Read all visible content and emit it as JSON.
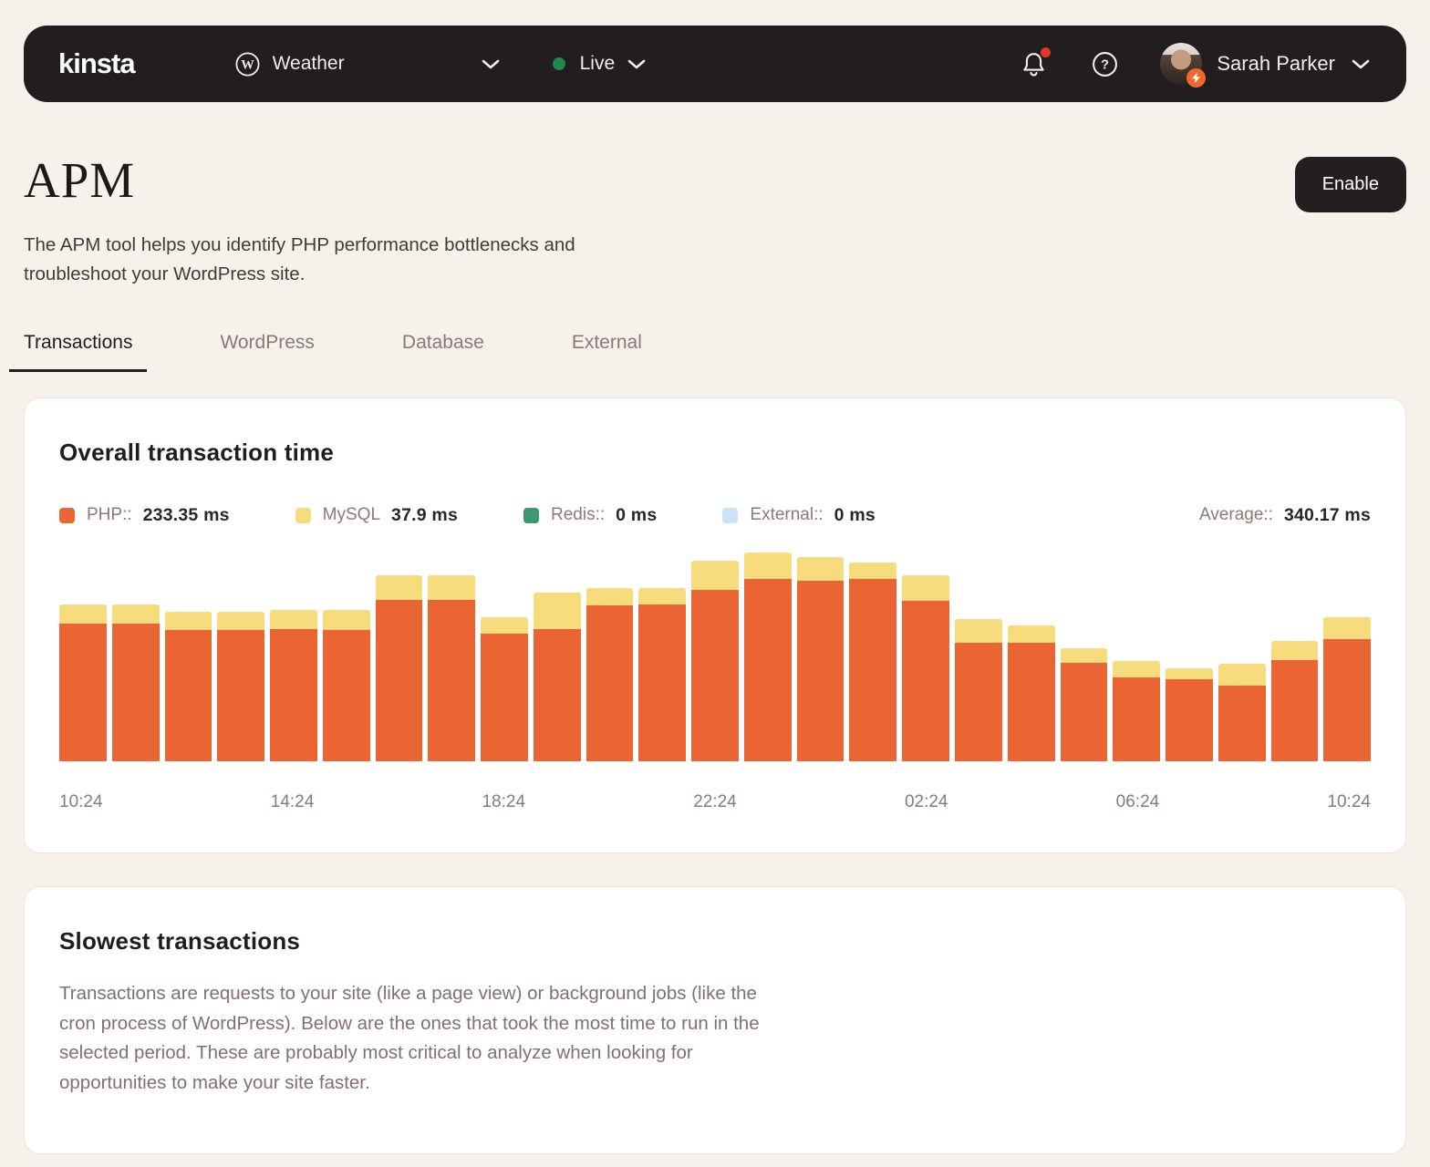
{
  "nav": {
    "logo": "kinsta",
    "site_selector": {
      "label": "Weather",
      "icon": "wordpress-icon"
    },
    "env_selector": {
      "label": "Live",
      "status_color": "#1F8A4D"
    },
    "user": {
      "name": "Sarah Parker"
    }
  },
  "page": {
    "title": "APM",
    "description": "The APM tool helps you identify PHP performance bottlenecks and troubleshoot your WordPress site.",
    "enable_button": "Enable"
  },
  "tabs": [
    {
      "label": "Transactions",
      "active": true
    },
    {
      "label": "WordPress",
      "active": false
    },
    {
      "label": "Database",
      "active": false
    },
    {
      "label": "External",
      "active": false
    }
  ],
  "overall_card": {
    "title": "Overall transaction time",
    "legend": [
      {
        "name": "php",
        "label": "PHP::",
        "value": "233.35 ms",
        "color": "#EA6533"
      },
      {
        "name": "mysql",
        "label": "MySQL",
        "value": "37.9 ms",
        "color": "#F6DC7C"
      },
      {
        "name": "redis",
        "label": "Redis::",
        "value": "0 ms",
        "color": "#3D9970"
      },
      {
        "name": "external",
        "label": "External::",
        "value": "0 ms",
        "color": "#CBE3F9"
      }
    ],
    "average": {
      "label": "Average::",
      "value": "340.17 ms"
    }
  },
  "slowest_card": {
    "title": "Slowest transactions",
    "description": "Transactions are requests to your site (like a page view) or background jobs (like the cron process of WordPress). Below are the ones that took the most time to run in the selected period. These are probably most critical to analyze when looking for opportunities to make your site faster."
  },
  "chart_data": {
    "type": "bar",
    "stacked": true,
    "title": "Overall transaction time",
    "units": "ms",
    "ylim": [
      0,
      464
    ],
    "grid": false,
    "legend_position": "top",
    "x_axis_labels": [
      "10:24",
      "14:24",
      "18:24",
      "22:24",
      "02:24",
      "06:24",
      "10:24"
    ],
    "series": [
      {
        "name": "PHP",
        "color": "#EA6533",
        "values": [
          302,
          302,
          288,
          288,
          290,
          288,
          354,
          354,
          280,
          290,
          342,
          344,
          376,
          400,
          396,
          400,
          352,
          260,
          260,
          216,
          184,
          180,
          166,
          222,
          268
        ]
      },
      {
        "name": "MySQL",
        "color": "#F6DC7C",
        "values": [
          42,
          42,
          40,
          40,
          42,
          44,
          54,
          54,
          36,
          80,
          38,
          36,
          64,
          58,
          52,
          36,
          56,
          52,
          38,
          32,
          36,
          24,
          48,
          42,
          48
        ]
      },
      {
        "name": "Redis",
        "color": "#3D9970",
        "values": [
          0,
          0,
          0,
          0,
          0,
          0,
          0,
          0,
          0,
          0,
          0,
          0,
          0,
          0,
          0,
          0,
          0,
          0,
          0,
          0,
          0,
          0,
          0,
          0,
          0
        ]
      },
      {
        "name": "External",
        "color": "#CBE3F9",
        "values": [
          0,
          0,
          0,
          0,
          0,
          0,
          0,
          0,
          0,
          0,
          0,
          0,
          0,
          0,
          0,
          0,
          0,
          0,
          0,
          0,
          0,
          0,
          0,
          0,
          0
        ]
      }
    ]
  }
}
